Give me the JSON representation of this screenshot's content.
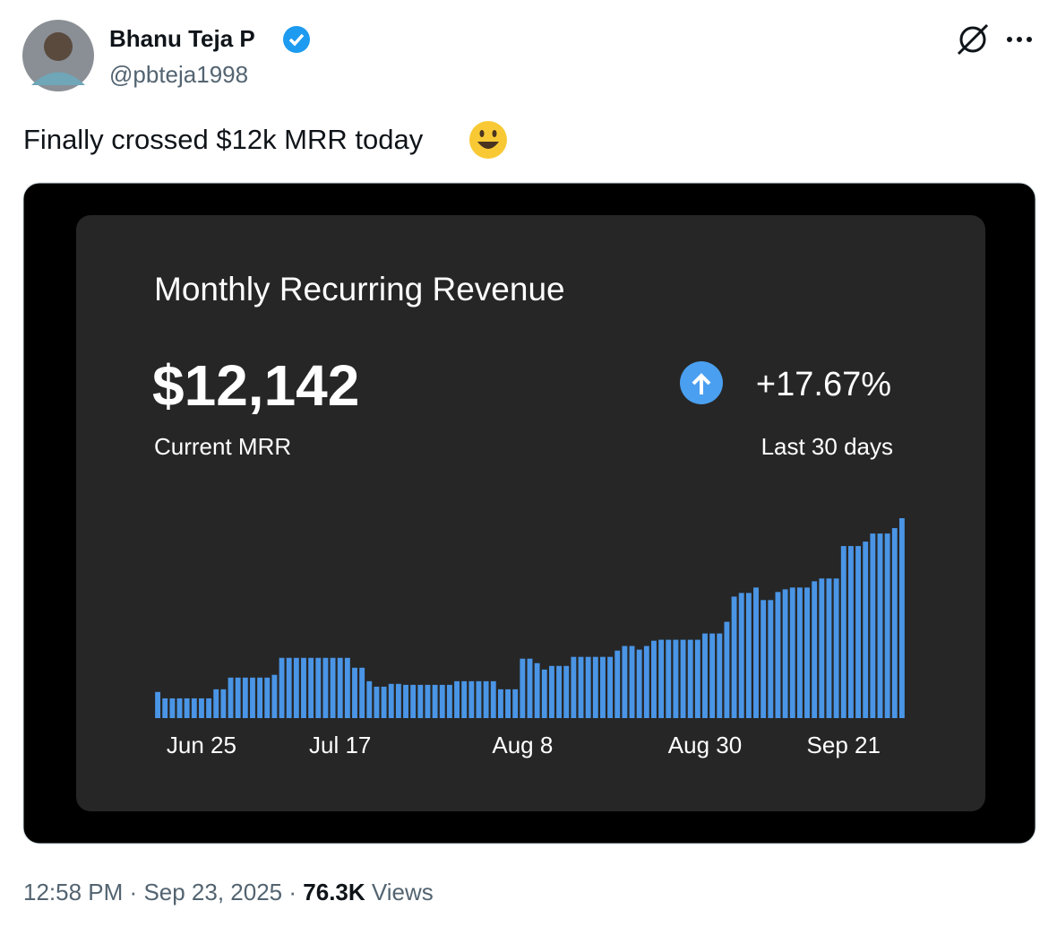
{
  "tweet": {
    "name": "Bhanu Teja P",
    "handle": "@pbteja1998",
    "text": "Finally crossed $12k MRR today",
    "time": "12:58 PM",
    "separator": "·",
    "date": "Sep 23, 2025",
    "views": "76.3K",
    "views_label": "Views"
  },
  "card": {
    "headline_value": "$12,142",
    "headline_label": "Current MRR",
    "change": "+17.67%",
    "change_label": "Last 30 days"
  },
  "chart_data": {
    "type": "bar",
    "title": "Monthly Recurring Revenue",
    "color": "#4a95e6",
    "categories": [
      null,
      null,
      null,
      null,
      null,
      null,
      "Jun 25",
      null,
      null,
      null,
      null,
      null,
      null,
      null,
      null,
      null,
      null,
      null,
      null,
      null,
      null,
      null,
      null,
      null,
      null,
      "Jul 17",
      null,
      null,
      null,
      null,
      null,
      null,
      null,
      null,
      null,
      null,
      null,
      null,
      null,
      null,
      null,
      null,
      null,
      null,
      null,
      null,
      null,
      null,
      null,
      null,
      "Aug 8",
      null,
      null,
      null,
      null,
      null,
      null,
      null,
      null,
      null,
      null,
      null,
      null,
      null,
      null,
      null,
      null,
      null,
      null,
      null,
      null,
      null,
      null,
      null,
      null,
      "Aug 30",
      null,
      null,
      null,
      null,
      null,
      null,
      null,
      null,
      null,
      null,
      null,
      null,
      null,
      null,
      null,
      null,
      null,
      null,
      "Sep 21",
      null,
      null,
      null,
      null,
      null,
      null,
      null,
      null
    ],
    "values": [
      1590,
      1200,
      1200,
      1200,
      1200,
      1200,
      1200,
      1200,
      1750,
      1750,
      2460,
      2460,
      2460,
      2460,
      2460,
      2460,
      2630,
      3660,
      3660,
      3660,
      3660,
      3660,
      3660,
      3660,
      3660,
      3660,
      3660,
      3060,
      3060,
      2240,
      1910,
      1910,
      2080,
      2080,
      2020,
      2020,
      2020,
      2020,
      2020,
      2020,
      2020,
      2240,
      2240,
      2240,
      2240,
      2240,
      2240,
      1750,
      1750,
      1750,
      3610,
      3610,
      3340,
      2950,
      3170,
      3170,
      3170,
      3720,
      3720,
      3720,
      3720,
      3720,
      3720,
      4100,
      4380,
      4380,
      4160,
      4380,
      4700,
      4760,
      4760,
      4760,
      4760,
      4760,
      4760,
      5140,
      5140,
      5140,
      5850,
      7380,
      7600,
      7600,
      7930,
      7170,
      7170,
      7660,
      7820,
      7930,
      7930,
      7930,
      8310,
      8480,
      8480,
      8480,
      10450,
      10450,
      10450,
      10720,
      11210,
      11210,
      11210,
      11540,
      12142
    ]
  }
}
